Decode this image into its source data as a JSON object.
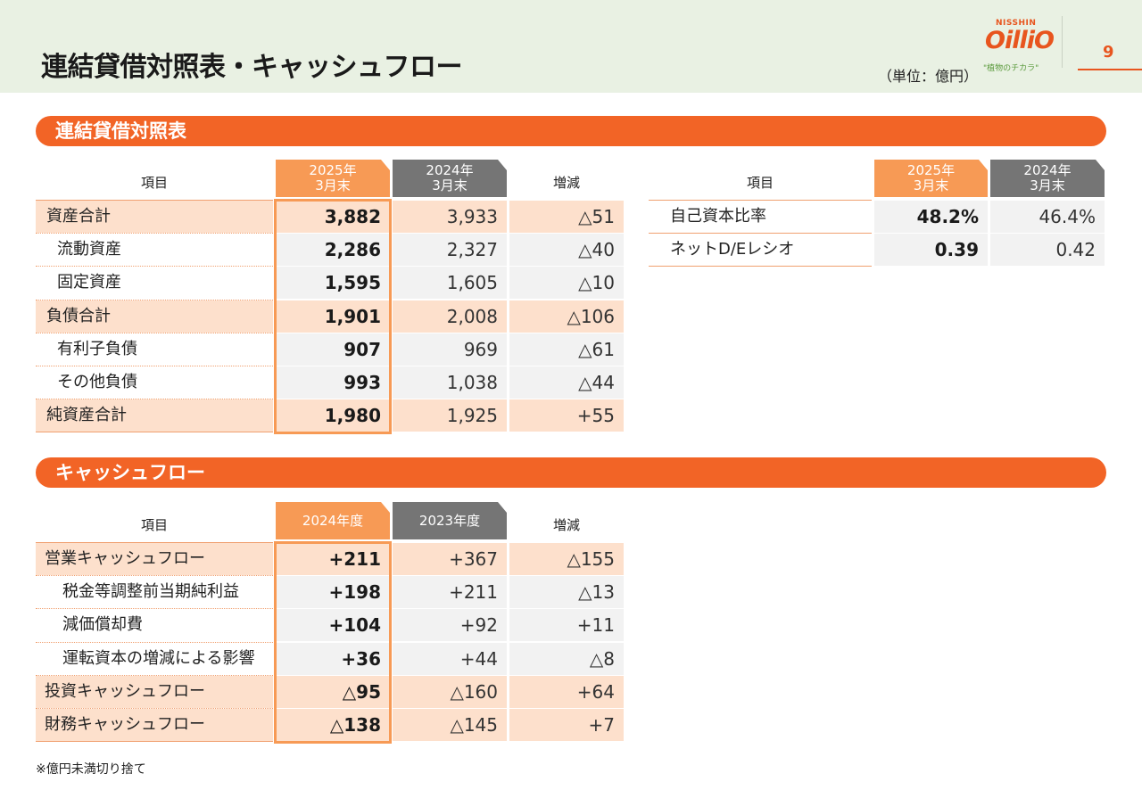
{
  "header": {
    "title": "連結貸借対照表・キャッシュフロー",
    "unit": "（単位：億円）",
    "logo_top": "NISSHIN",
    "logo_main": "OilliO",
    "logo_sub": "\"植物のチカラ\"",
    "page_number": "9",
    "accent_color": "#f26426"
  },
  "bs": {
    "section_title": "連結貸借対照表",
    "col_item": "項目",
    "col_cur": "2025年\n3月末",
    "col_prev": "2024年\n3月末",
    "col_diff": "増減",
    "rows": [
      {
        "label": "資産合計",
        "cur": "3,882",
        "prev": "3,933",
        "diff": "△51"
      },
      {
        "label": "流動資産",
        "cur": "2,286",
        "prev": "2,327",
        "diff": "△40"
      },
      {
        "label": "固定資産",
        "cur": "1,595",
        "prev": "1,605",
        "diff": "△10"
      },
      {
        "label": "負債合計",
        "cur": "1,901",
        "prev": "2,008",
        "diff": "△106"
      },
      {
        "label": "有利子負債",
        "cur": "907",
        "prev": "969",
        "diff": "△61"
      },
      {
        "label": "その他負債",
        "cur": "993",
        "prev": "1,038",
        "diff": "△44"
      },
      {
        "label": "純資産合計",
        "cur": "1,980",
        "prev": "1,925",
        "diff": "+55"
      }
    ]
  },
  "ratios": {
    "col_item": "項目",
    "col_cur": "2025年\n3月末",
    "col_prev": "2024年\n3月末",
    "rows": [
      {
        "label": "自己資本比率",
        "cur": "48.2%",
        "prev": "46.4%"
      },
      {
        "label": "ネットD/Eレシオ",
        "cur": "0.39",
        "prev": "0.42"
      }
    ]
  },
  "cf": {
    "section_title": "キャッシュフロー",
    "col_item": "項目",
    "col_cur": "2024年度",
    "col_prev": "2023年度",
    "col_diff": "増減",
    "rows": [
      {
        "label": "営業キャッシュフロー",
        "cur": "+211",
        "prev": "+367",
        "diff": "△155"
      },
      {
        "label": "税金等調整前当期純利益",
        "cur": "+198",
        "prev": "+211",
        "diff": "△13"
      },
      {
        "label": "減価償却費",
        "cur": "+104",
        "prev": "+92",
        "diff": "+11"
      },
      {
        "label": "運転資本の増減による影響",
        "cur": "+36",
        "prev": "+44",
        "diff": "△8"
      },
      {
        "label": "投資キャッシュフロー",
        "cur": "△95",
        "prev": "△160",
        "diff": "+64"
      },
      {
        "label": "財務キャッシュフロー",
        "cur": "△138",
        "prev": "△145",
        "diff": "+7"
      }
    ]
  },
  "footnote": "※億円未満切り捨て"
}
